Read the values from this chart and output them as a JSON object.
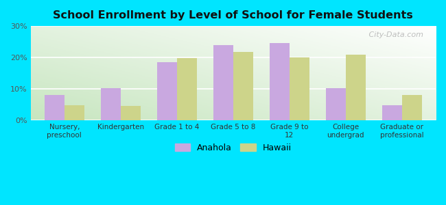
{
  "title": "School Enrollment by Level of School for Female Students",
  "categories": [
    "Nursery,\npreschool",
    "Kindergarten",
    "Grade 1 to 4",
    "Grade 5 to 8",
    "Grade 9 to\n12",
    "College\nundergrad",
    "Graduate or\nprofessional"
  ],
  "anahola": [
    8.0,
    10.3,
    18.5,
    24.0,
    24.5,
    10.3,
    4.8
  ],
  "hawaii": [
    4.8,
    4.6,
    19.8,
    21.8,
    20.0,
    21.0,
    8.0
  ],
  "anahola_color": "#c9a8e0",
  "hawaii_color": "#cdd48a",
  "bg_outer": "#00e5ff",
  "ylim": [
    0,
    30
  ],
  "yticks": [
    0,
    10,
    20,
    30
  ],
  "ytick_labels": [
    "0%",
    "10%",
    "20%",
    "30%"
  ],
  "bar_width": 0.35,
  "legend_labels": [
    "Anahola",
    "Hawaii"
  ],
  "watermark": "   City-Data.com",
  "gradient_top_right": "#ffffff",
  "gradient_bottom_left": "#c8e6c0"
}
